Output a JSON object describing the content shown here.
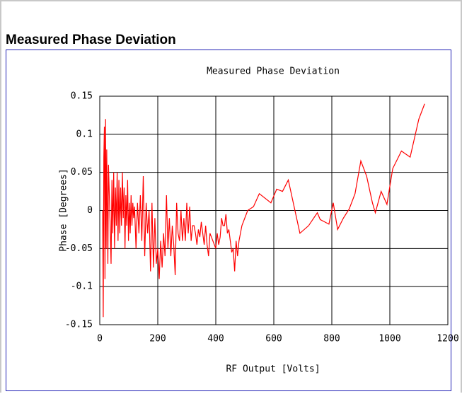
{
  "heading": "Measured Phase Deviation",
  "chart_data": {
    "type": "line",
    "title": "Measured Phase Deviation",
    "x_label": "RF Output [Volts]",
    "y_label": "Phase [Degrees]",
    "x": [
      10,
      12,
      14,
      16,
      18,
      20,
      22,
      24,
      26,
      28,
      30,
      33,
      36,
      39,
      42,
      45,
      48,
      51,
      54,
      57,
      60,
      63,
      66,
      69,
      72,
      75,
      78,
      81,
      84,
      87,
      90,
      93,
      96,
      99,
      102,
      105,
      108,
      111,
      114,
      117,
      120,
      125,
      130,
      135,
      140,
      145,
      150,
      155,
      160,
      165,
      170,
      175,
      180,
      185,
      190,
      195,
      200,
      205,
      210,
      215,
      220,
      225,
      230,
      235,
      240,
      245,
      250,
      255,
      260,
      265,
      270,
      275,
      280,
      285,
      290,
      295,
      300,
      305,
      310,
      315,
      320,
      325,
      330,
      335,
      340,
      345,
      350,
      355,
      360,
      365,
      370,
      375,
      380,
      385,
      390,
      395,
      400,
      405,
      410,
      415,
      420,
      425,
      430,
      435,
      440,
      445,
      450,
      455,
      460,
      465,
      470,
      475,
      480,
      490,
      510,
      530,
      550,
      590,
      610,
      630,
      650,
      670,
      690,
      720,
      750,
      760,
      775,
      790,
      805,
      820,
      840,
      860,
      880,
      900,
      920,
      940,
      950,
      970,
      990,
      1010,
      1040,
      1070,
      1100,
      1120
    ],
    "series": [
      {
        "name": "Phase",
        "color": "#ff0000",
        "values": [
          0.0,
          -0.14,
          0.07,
          0.11,
          -0.09,
          0.12,
          -0.05,
          0.08,
          0.0,
          -0.07,
          0.06,
          0.02,
          -0.02,
          -0.07,
          0.04,
          -0.03,
          0.05,
          -0.05,
          0.03,
          -0.02,
          0.05,
          -0.04,
          0.04,
          -0.03,
          0.03,
          -0.02,
          0.05,
          -0.01,
          0.03,
          -0.05,
          0.02,
          -0.02,
          0.04,
          -0.04,
          0.01,
          -0.03,
          0.02,
          -0.02,
          0.01,
          -0.01,
          0.005,
          -0.05,
          0.01,
          -0.03,
          0.02,
          -0.04,
          0.045,
          -0.06,
          0.01,
          -0.03,
          0.0,
          -0.08,
          0.01,
          -0.075,
          -0.01,
          -0.07,
          -0.05,
          -0.09,
          -0.04,
          -0.075,
          -0.03,
          -0.06,
          0.02,
          -0.05,
          -0.01,
          -0.06,
          -0.02,
          -0.045,
          -0.085,
          0.01,
          -0.03,
          -0.04,
          0.0,
          -0.04,
          -0.01,
          -0.04,
          0.01,
          -0.03,
          0.005,
          -0.04,
          -0.02,
          -0.02,
          -0.03,
          -0.045,
          -0.025,
          -0.035,
          -0.015,
          -0.03,
          -0.045,
          -0.02,
          -0.045,
          -0.06,
          -0.03,
          -0.035,
          -0.04,
          -0.045,
          -0.05,
          -0.03,
          -0.045,
          -0.035,
          -0.01,
          -0.02,
          -0.02,
          -0.005,
          -0.03,
          -0.025,
          -0.04,
          -0.055,
          -0.05,
          -0.08,
          -0.04,
          -0.06,
          -0.04,
          -0.02,
          0.0,
          0.005,
          0.022,
          0.01,
          0.028,
          0.025,
          0.04,
          0.005,
          -0.03,
          -0.02,
          -0.003,
          -0.012,
          -0.015,
          -0.018,
          0.01,
          -0.025,
          -0.01,
          0.002,
          0.022,
          0.065,
          0.045,
          0.01,
          -0.003,
          0.025,
          0.008,
          0.055,
          0.078,
          0.07,
          0.12,
          0.14
        ]
      }
    ],
    "xlim": [
      0,
      1200
    ],
    "xticks": [
      0,
      200,
      400,
      600,
      800,
      1000,
      1200
    ],
    "ylim": [
      -0.15,
      0.15
    ],
    "yticks": [
      0.15,
      0.1,
      0.05,
      0,
      -0.05,
      -0.1,
      -0.15
    ],
    "grid": true,
    "grid_color": "#000000"
  }
}
